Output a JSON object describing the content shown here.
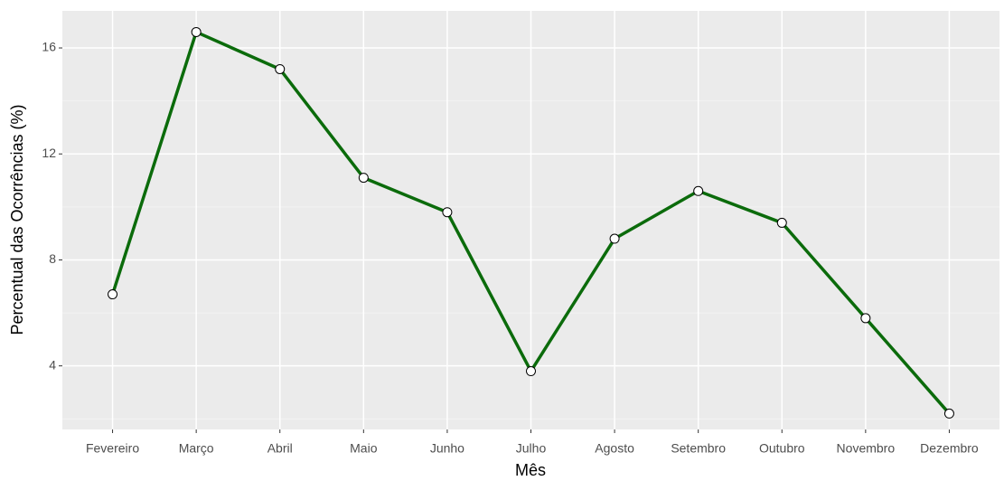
{
  "chart_data": {
    "type": "line",
    "x_label": "Mês",
    "y_label": "Percentual das Ocorrências (%)",
    "categories": [
      "Fevereiro",
      "Março",
      "Abril",
      "Maio",
      "Junho",
      "Julho",
      "Agosto",
      "Setembro",
      "Outubro",
      "Novembro",
      "Dezembro"
    ],
    "series": [
      {
        "color": "#0b6b0b",
        "values": [
          6.7,
          16.6,
          15.2,
          11.1,
          9.8,
          3.8,
          8.8,
          10.6,
          9.4,
          5.8,
          2.2
        ]
      }
    ],
    "ylim": [
      1.6,
      17.4
    ],
    "yticks": [
      4,
      8,
      12,
      16
    ],
    "grid": true
  }
}
